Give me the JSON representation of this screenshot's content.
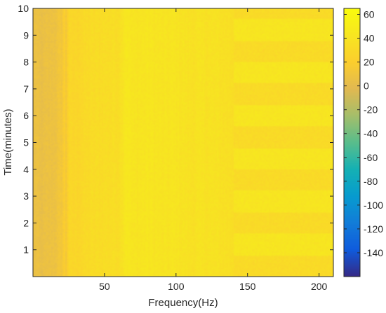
{
  "chart_data": {
    "type": "heatmap",
    "title": "",
    "xlabel": "Frequency(Hz)",
    "ylabel": "Time(minutes)",
    "xlim": [
      0,
      210
    ],
    "ylim": [
      0,
      10
    ],
    "x_ticks": [
      50,
      100,
      150,
      200
    ],
    "x_tick_labels": [
      "50",
      "100",
      "150",
      "200"
    ],
    "y_ticks": [
      1,
      2,
      3,
      4,
      5,
      6,
      7,
      8,
      9,
      10
    ],
    "y_tick_labels": [
      "1",
      "2",
      "3",
      "4",
      "5",
      "6",
      "7",
      "8",
      "9",
      "10"
    ],
    "colorbar": {
      "colormap": "parula",
      "range": [
        -160,
        65
      ],
      "ticks": [
        60,
        40,
        20,
        0,
        -20,
        -40,
        -60,
        -80,
        -100,
        -120,
        -140
      ],
      "tick_labels": [
        "60",
        "40",
        "20",
        "0",
        "-20",
        "-40",
        "-60",
        "-80",
        "-100",
        "-120",
        "-140"
      ]
    },
    "frequency_profile_level": {
      "frequency_hz": [
        0,
        5,
        10,
        15,
        20,
        22,
        23,
        25,
        30,
        35,
        40,
        50,
        60,
        65,
        70,
        80,
        90,
        100,
        110,
        120,
        130,
        140,
        160,
        180,
        200,
        210
      ],
      "level": [
        8,
        4,
        6,
        8,
        12,
        20,
        13,
        27,
        28,
        30,
        32,
        34,
        35,
        45,
        40,
        42,
        40,
        41,
        38,
        39,
        38,
        36,
        34,
        34,
        33,
        33
      ]
    },
    "time_alternation": {
      "frequency_start_hz": 140,
      "period_minutes": 0.8,
      "high_level": 42,
      "low_level": 32
    },
    "noise_level": 3,
    "grid": false
  }
}
